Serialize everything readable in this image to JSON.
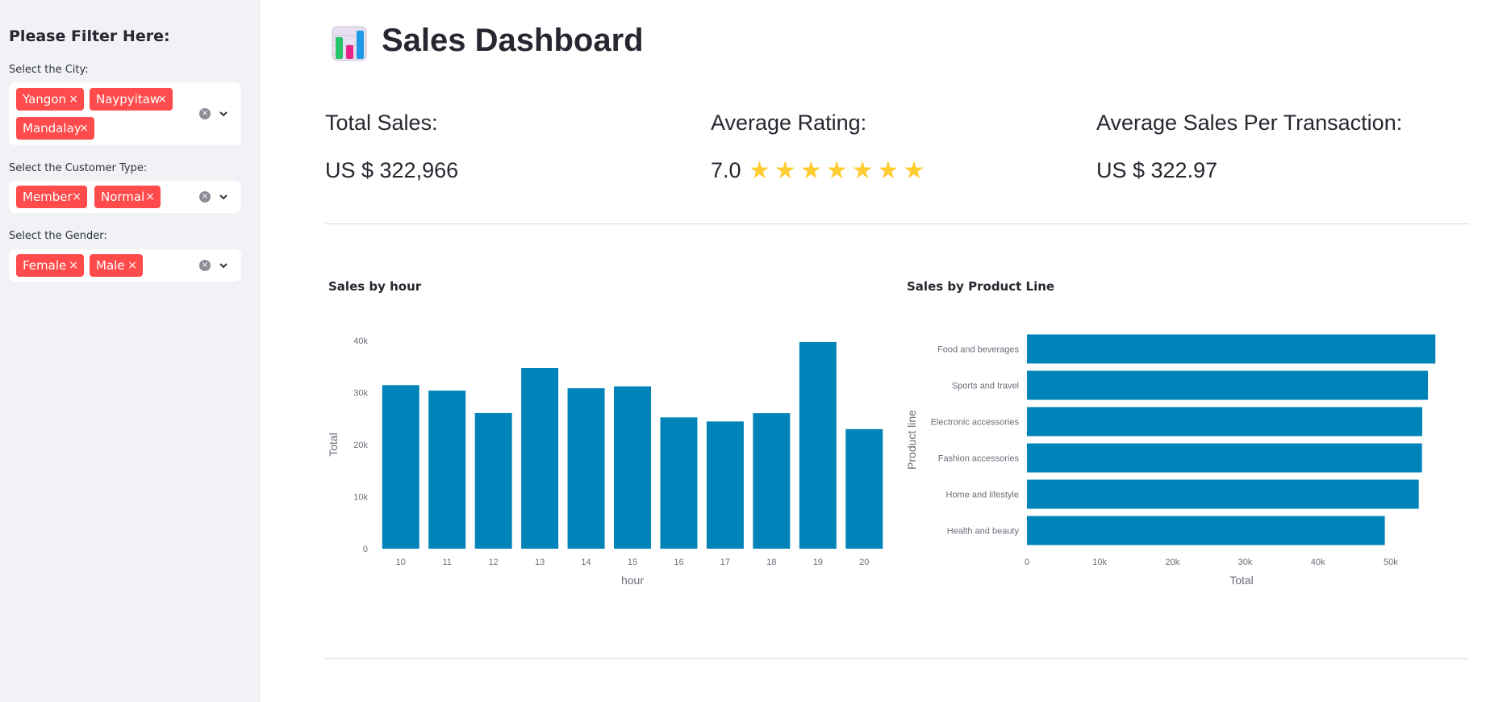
{
  "sidebar": {
    "title": "Please Filter Here:",
    "city": {
      "label": "Select the City:",
      "tags": [
        "Yangon",
        "Naypyitaw",
        "Mandalay"
      ]
    },
    "customer_type": {
      "label": "Select the Customer Type:",
      "tags": [
        "Member",
        "Normal"
      ]
    },
    "gender": {
      "label": "Select the Gender:",
      "tags": [
        "Female",
        "Male"
      ]
    },
    "tag_remove_glyph": "×",
    "clear_glyph": "×"
  },
  "header": {
    "title": "Sales Dashboard",
    "icon": "bar-chart-emoji-icon"
  },
  "kpis": {
    "total_sales": {
      "label": "Total Sales:",
      "value": "US $ 322,966"
    },
    "average_rating": {
      "label": "Average Rating:",
      "value": "7.0",
      "stars": 7,
      "star_glyph": "★"
    },
    "avg_per_transaction": {
      "label": "Average Sales Per Transaction:",
      "value": "US $ 322.97"
    }
  },
  "colors": {
    "bar": "#0083b8",
    "tag": "#ff4b4b",
    "star": "#ffcc32"
  },
  "chart_data": [
    {
      "type": "bar",
      "title": "Sales by hour",
      "categories": [
        "10",
        "11",
        "12",
        "13",
        "14",
        "15",
        "16",
        "17",
        "18",
        "19",
        "20"
      ],
      "values": [
        31422,
        30378,
        26066,
        34724,
        30829,
        31180,
        25226,
        24445,
        26031,
        39700,
        22970
      ],
      "xlabel": "hour",
      "ylabel": "Total",
      "ylim": [
        0,
        40000
      ],
      "yticks": [
        "0",
        "10k",
        "20k",
        "30k",
        "40k"
      ]
    },
    {
      "type": "bar",
      "orientation": "horizontal",
      "title": "Sales by Product Line",
      "categories": [
        "Food and beverages",
        "Sports and travel",
        "Electronic accessories",
        "Fashion accessories",
        "Home and lifestyle",
        "Health and beauty"
      ],
      "values": [
        56145,
        55123,
        54338,
        54306,
        53862,
        49194
      ],
      "xlabel": "Total",
      "ylabel": "Product line",
      "xlim": [
        0,
        59000
      ],
      "xticks": [
        "0",
        "10k",
        "20k",
        "30k",
        "40k",
        "50k"
      ]
    }
  ]
}
